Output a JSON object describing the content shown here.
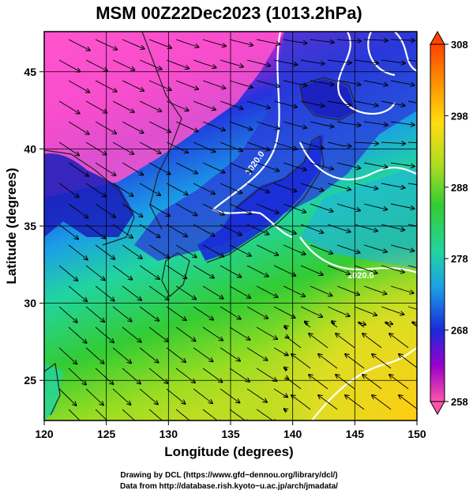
{
  "title": "MSM 00Z22Dec2023 (1013.2hPa)",
  "x_axis": {
    "label": "Longitude (degrees)",
    "range": [
      120,
      150
    ],
    "ticks": [
      "120",
      "125",
      "130",
      "135",
      "140",
      "145",
      "150"
    ]
  },
  "y_axis": {
    "label": "Latitude  (degrees)",
    "range": [
      22.4,
      47.6
    ],
    "ticks": [
      "25",
      "30",
      "35",
      "40",
      "45"
    ]
  },
  "colorbar": {
    "range": [
      258,
      308
    ],
    "ticks": [
      "258",
      "268",
      "278",
      "288",
      "298",
      "308"
    ],
    "colors": [
      "#ff55aa",
      "#9900cc",
      "#1a2ad8",
      "#1aa0e6",
      "#22d4a0",
      "#33cc33",
      "#aadd22",
      "#ffdd11",
      "#ff9900",
      "#ff4400"
    ]
  },
  "contour_labels": [
    "1020.0",
    "1020.0"
  ],
  "credits": {
    "line1": "Drawing by DCL (https://www.gfd−dennou.org/library/dcl/)",
    "line2": "Data from http://database.rish.kyoto−u.ac.jp/arch/jmadata/"
  }
}
